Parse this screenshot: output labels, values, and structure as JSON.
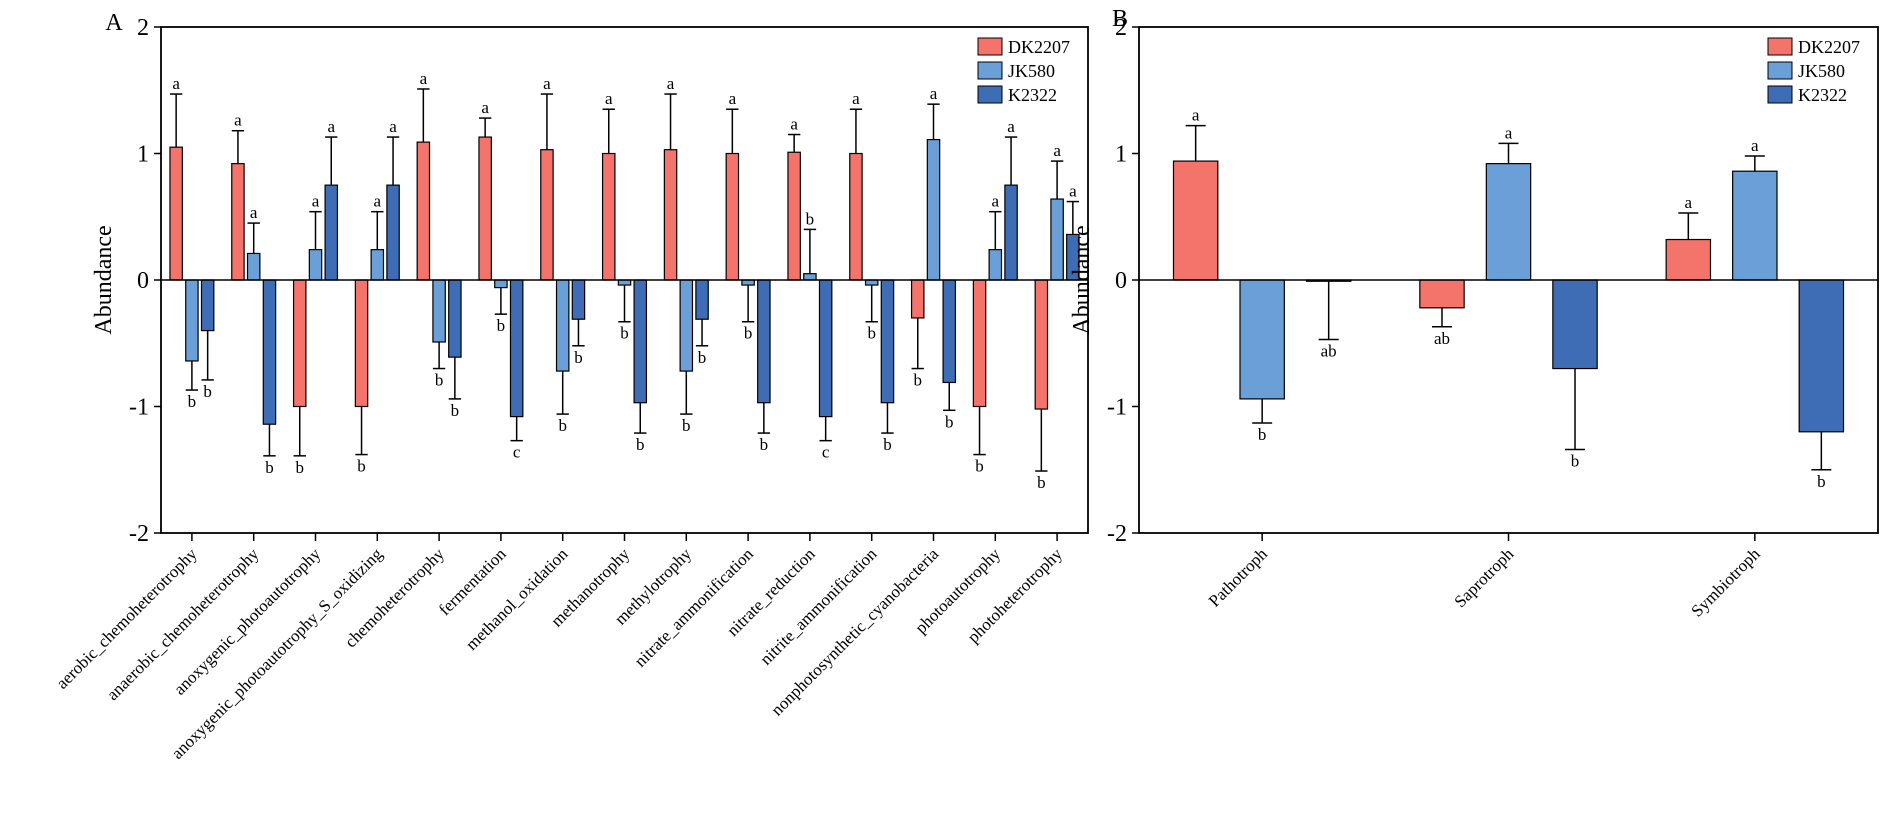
{
  "chart_data": [
    {
      "type": "bar",
      "panel": "A",
      "ylabel": "Abundance",
      "categories": [
        "aerobic_chemoheterotrophy",
        "anaerobic_chemoheterotrophy",
        "anoxygenic_photoautotrophy",
        "anoxygenic_photoautotrophy_S_oxidizing",
        "chemoheterotrophy",
        "fermentation",
        "methanol_oxidation",
        "methanotrophy",
        "methylotrophy",
        "nitrate_ammonification",
        "nitrate_reduction",
        "nitrite_ammonification",
        "nonphotosynthetic_cyanobacteria",
        "photoautotrophy",
        "photoheterotrophy"
      ],
      "series": [
        {
          "name": "DK2207",
          "color": "#f4736b",
          "values": [
            1.05,
            0.92,
            -1.0,
            -1.0,
            1.09,
            1.13,
            1.03,
            1.0,
            1.03,
            1.0,
            1.01,
            1.0,
            -0.3,
            -1.0,
            -1.02
          ],
          "errors": [
            0.42,
            0.26,
            0.39,
            0.38,
            0.42,
            0.15,
            0.44,
            0.35,
            0.44,
            0.35,
            0.14,
            0.35,
            0.4,
            0.38,
            0.49
          ],
          "letters": [
            "a",
            "a",
            "b",
            "b",
            "a",
            "a",
            "a",
            "a",
            "a",
            "a",
            "a",
            "a",
            "b",
            "b",
            "b"
          ]
        },
        {
          "name": "JK580",
          "color": "#6a9fd8",
          "values": [
            -0.64,
            0.21,
            0.24,
            0.24,
            -0.49,
            -0.06,
            -0.72,
            -0.04,
            -0.72,
            -0.04,
            0.05,
            -0.04,
            1.11,
            0.24,
            0.64
          ],
          "errors": [
            0.23,
            0.24,
            0.3,
            0.3,
            0.21,
            0.21,
            0.34,
            0.29,
            0.34,
            0.29,
            0.35,
            0.29,
            0.28,
            0.3,
            0.3
          ],
          "letters": [
            "b",
            "a",
            "a",
            "a",
            "b",
            "b",
            "b",
            "b",
            "b",
            "b",
            "b",
            "b",
            "a",
            "a",
            "a"
          ]
        },
        {
          "name": "K2322",
          "color": "#3f6db5",
          "values": [
            -0.4,
            -1.14,
            0.75,
            0.75,
            -0.61,
            -1.08,
            -0.31,
            -0.97,
            -0.31,
            -0.97,
            -1.08,
            -0.97,
            -0.81,
            0.75,
            0.36
          ],
          "errors": [
            0.39,
            0.25,
            0.38,
            0.38,
            0.33,
            0.19,
            0.21,
            0.24,
            0.21,
            0.24,
            0.19,
            0.24,
            0.22,
            0.38,
            0.26
          ],
          "letters": [
            "b",
            "b",
            "a",
            "a",
            "b",
            "c",
            "b",
            "b",
            "b",
            "b",
            "c",
            "b",
            "b",
            "a",
            "a"
          ]
        }
      ],
      "ylim": [
        -2,
        2
      ],
      "yticks": [
        -2,
        -1,
        0,
        1,
        2
      ],
      "legend": "upper right"
    },
    {
      "type": "bar",
      "panel": "B",
      "ylabel": "Abundance",
      "categories": [
        "Pathotroph",
        "Saprotroph",
        "Symbiotroph"
      ],
      "series": [
        {
          "name": "DK2207",
          "color": "#f4736b",
          "values": [
            0.94,
            -0.22,
            0.32
          ],
          "errors": [
            0.28,
            0.15,
            0.21
          ],
          "letters": [
            "a",
            "ab",
            "a"
          ]
        },
        {
          "name": "JK580",
          "color": "#6a9fd8",
          "values": [
            -0.94,
            0.92,
            0.86
          ],
          "errors": [
            0.19,
            0.16,
            0.12
          ],
          "letters": [
            "b",
            "a",
            "a"
          ]
        },
        {
          "name": "K2322",
          "color": "#3f6db5",
          "values": [
            -0.01,
            -0.7,
            -1.2
          ],
          "errors": [
            0.46,
            0.64,
            0.3
          ],
          "letters": [
            "ab",
            "b",
            "b"
          ]
        }
      ],
      "ylim": [
        -2,
        2
      ],
      "yticks": [
        -2,
        -1,
        0,
        1,
        2
      ],
      "legend": "upper right"
    }
  ]
}
